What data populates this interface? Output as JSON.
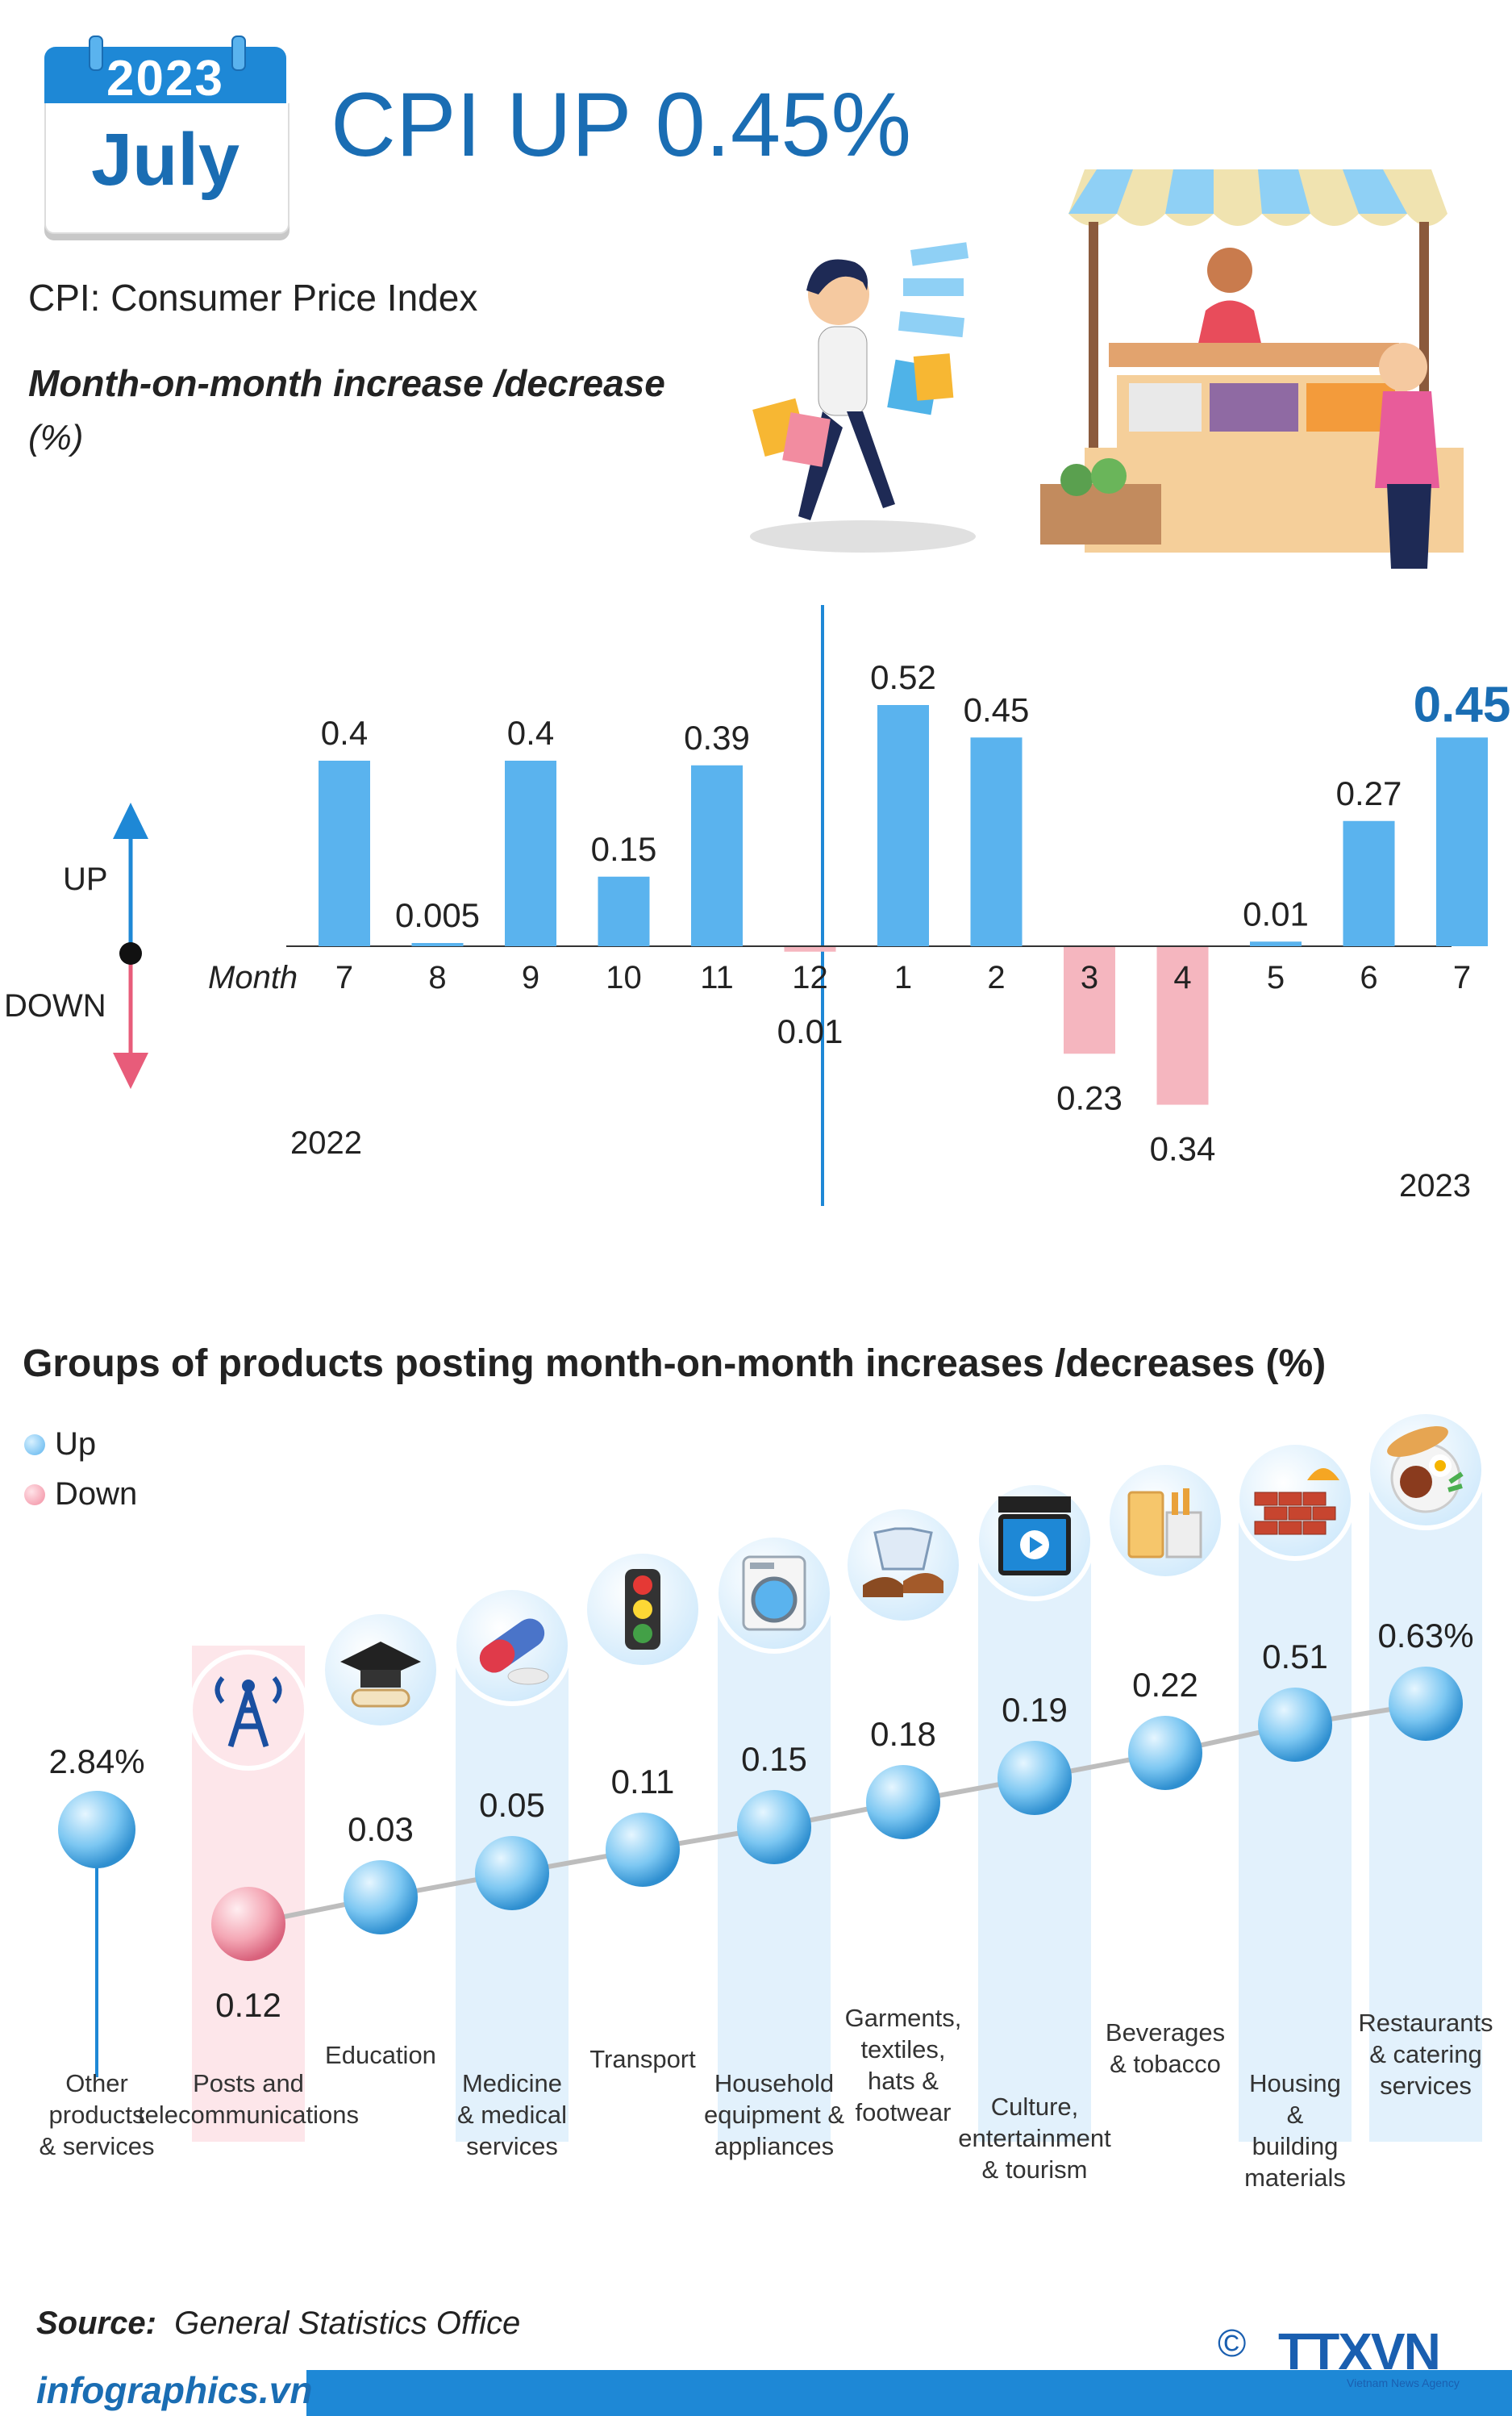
{
  "header": {
    "year": "2023",
    "month": "July",
    "title": "CPI UP 0.45%",
    "subtitle": "CPI: Consumer Price Index",
    "chart_heading": "Month-on-month increase /decrease",
    "unit": "(%)"
  },
  "colors": {
    "blue": "#1a6db3",
    "bar_up": "#5ab3ee",
    "bar_down": "#f5b6bf",
    "accent": "#1e88d6"
  },
  "axis": {
    "up": "UP",
    "down": "DOWN",
    "month_label": "Month",
    "year_2022": "2022",
    "year_2023": "2023"
  },
  "groups_title": "Groups of products posting month-on-month increases /decreases (%)",
  "legend": {
    "up": "Up",
    "down": "Down"
  },
  "source": {
    "label": "Source:",
    "text": "General Statistics Office"
  },
  "footer": {
    "site": "infographics.vn",
    "logo": "TTXVN",
    "logo_sub": "Vietnam News Agency",
    "copyright": "©"
  },
  "chart_data": [
    {
      "type": "bar",
      "title": "Month-on-month increase /decrease",
      "ylabel": "(%)",
      "xlabel": "Month",
      "categories": [
        "7",
        "8",
        "9",
        "10",
        "11",
        "12",
        "1",
        "2",
        "3",
        "4",
        "5",
        "6",
        "7"
      ],
      "years": [
        "2022",
        "2022",
        "2022",
        "2022",
        "2022",
        "2022",
        "2023",
        "2023",
        "2023",
        "2023",
        "2023",
        "2023",
        "2023"
      ],
      "values": [
        0.4,
        0.005,
        0.4,
        0.15,
        0.39,
        -0.01,
        0.52,
        0.45,
        -0.23,
        -0.34,
        0.01,
        0.27,
        0.45
      ],
      "labels": [
        "0.4",
        "0.005",
        "0.4",
        "0.15",
        "0.39",
        "0.01",
        "0.52",
        "0.45",
        "0.23",
        "0.34",
        "0.01",
        "0.27",
        "0.45"
      ],
      "highlight_index": 12,
      "ylim": [
        -0.4,
        0.6
      ]
    },
    {
      "type": "scatter",
      "title": "Groups of products posting month-on-month increases /decreases (%)",
      "categories": [
        "Other products & services",
        "Posts and telecommunications",
        "Education",
        "Medicine & medical services",
        "Transport",
        "Household equipment & appliances",
        "Garments, textiles, hats & footwear",
        "Culture, entertainment & tourism",
        "Beverages & tobacco",
        "Housing & building materials",
        "Restaurants & catering services"
      ],
      "values": [
        2.84,
        -0.12,
        0.03,
        0.05,
        0.11,
        0.15,
        0.18,
        0.19,
        0.22,
        0.51,
        0.63
      ],
      "labels": [
        "2.84%",
        "0.12",
        "0.03",
        "0.05",
        "0.11",
        "0.15",
        "0.18",
        "0.19",
        "0.22",
        "0.51",
        "0.63%"
      ],
      "direction": [
        "up",
        "down",
        "up",
        "up",
        "up",
        "up",
        "up",
        "up",
        "up",
        "up",
        "up"
      ],
      "icons": [
        "",
        "tower-icon",
        "graduation-cap-icon",
        "pill-icon",
        "traffic-light-icon",
        "washing-machine-icon",
        "shirt-shoes-icon",
        "video-icon",
        "drinks-icon",
        "bricks-icon",
        "food-plate-icon"
      ]
    }
  ]
}
